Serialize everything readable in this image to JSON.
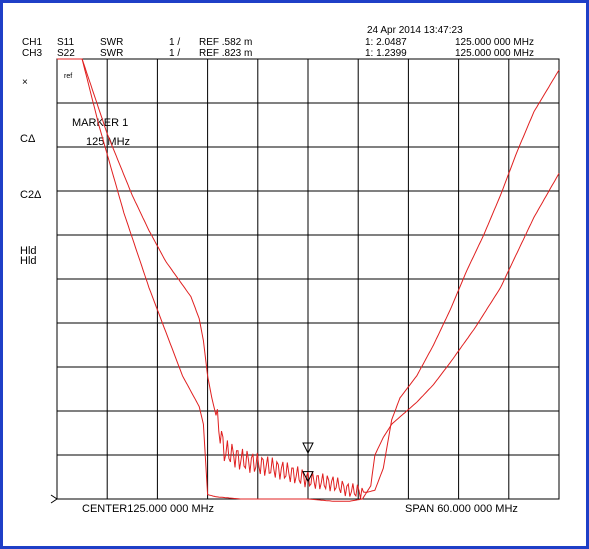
{
  "header": {
    "datetime": "24 Apr 2014  13:47:23",
    "channels": [
      {
        "ch": "CH1",
        "param": "S11",
        "format": "SWR",
        "scale": "1 /",
        "ref": "REF .582 m",
        "marker_value": "1: 2.0487",
        "marker_freq": "125.000 000 MHz"
      },
      {
        "ch": "CH3",
        "param": "S22",
        "format": "SWR",
        "scale": "1 /",
        "ref": "REF .823 m",
        "marker_value": "1: 1.2399",
        "marker_freq": "125.000 000 MHz"
      }
    ]
  },
  "side_labels": {
    "x_mark": "×",
    "c_label": "CΔ",
    "c2_label": "C2Δ",
    "hld1": "Hld",
    "hld2": "Hld"
  },
  "marker_box": {
    "title": "MARKER 1",
    "freq": "125 MHz",
    "tag": "ref"
  },
  "footer": {
    "center": "CENTER125.000 000 MHz",
    "span": "SPAN  60.000 000 MHz"
  },
  "colors": {
    "trace": "#e02020",
    "frame": "#1f3fc7",
    "grid": "#000000"
  },
  "chart_data": {
    "type": "line",
    "title": "",
    "xlabel": "",
    "ylabel": "",
    "xlim": [
      95,
      155
    ],
    "ylim": [
      0,
      10
    ],
    "grid": true,
    "x_divisions": 10,
    "y_divisions": 10,
    "marker_x": 125,
    "series": [
      {
        "name": "CH1 S11",
        "x": [
          95,
          98,
          101,
          104,
          106,
          108,
          111,
          112,
          112.5,
          113,
          113.5,
          114,
          115,
          117,
          120,
          122,
          125,
          128,
          130,
          132,
          133,
          134,
          135,
          136,
          138,
          140,
          142,
          144,
          146,
          148,
          150,
          152,
          155
        ],
        "y": [
          10,
          10,
          8.3,
          6.9,
          6.1,
          5.4,
          4.6,
          4.1,
          3.6,
          2.8,
          2.3,
          1.9,
          1.1,
          0.9,
          0.75,
          0.65,
          0.45,
          0.35,
          0.2,
          0.15,
          0.2,
          0.7,
          1.8,
          2.3,
          2.8,
          3.5,
          4.3,
          5.2,
          6.0,
          6.9,
          7.9,
          8.8,
          9.75
        ]
      },
      {
        "name": "CH3 S22",
        "x": [
          95,
          98,
          100,
          103,
          106,
          108,
          110,
          112,
          112.5,
          113,
          114,
          117,
          120,
          125,
          128,
          130,
          131.5,
          132.5,
          133,
          134,
          135,
          138,
          140,
          142,
          145,
          148,
          150,
          152,
          155
        ],
        "y": [
          10,
          10,
          8.5,
          6.5,
          4.8,
          3.8,
          2.8,
          2.1,
          1.7,
          0.1,
          0.05,
          0.0,
          0.0,
          0.0,
          -0.05,
          -0.05,
          0.0,
          0.3,
          1.0,
          1.4,
          1.7,
          2.2,
          2.6,
          3.1,
          3.9,
          4.8,
          5.6,
          6.4,
          7.4
        ]
      }
    ]
  }
}
